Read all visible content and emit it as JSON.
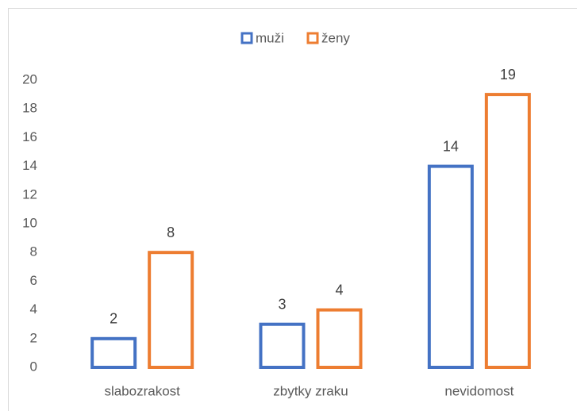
{
  "chart_data": {
    "type": "bar",
    "categories": [
      "slabozrakost",
      "zbytky zraku",
      "nevidomost"
    ],
    "series": [
      {
        "name": "muži",
        "color": "#4472c4",
        "values": [
          2,
          3,
          14
        ]
      },
      {
        "name": "ženy",
        "color": "#ed7d31",
        "values": [
          8,
          4,
          19
        ]
      }
    ],
    "ylim": [
      0,
      20
    ],
    "yticks": [
      0,
      2,
      4,
      6,
      8,
      10,
      12,
      14,
      16,
      18,
      20
    ],
    "legend": "top",
    "data_labels": true,
    "grid": false
  }
}
